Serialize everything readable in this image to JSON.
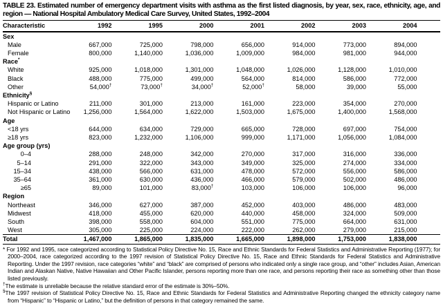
{
  "table": {
    "title": "TABLE 23. Estimated number of emergency department visits with asthma as the first listed diagnosis, by year, sex, race, ethnicity, age, and region — National Hospital Ambulatory Medical Care Survey, United States, 1992–2004",
    "columns": [
      "Characteristic",
      "1992",
      "1995",
      "2000",
      "2001",
      "2002",
      "2003",
      "2004"
    ],
    "rows": [
      {
        "style": "section",
        "label": "Sex"
      },
      {
        "style": "item",
        "label": "Male",
        "values": [
          "667,000",
          "725,000",
          "798,000",
          "656,000",
          "914,000",
          "773,000",
          "894,000"
        ]
      },
      {
        "style": "item",
        "label": "Female",
        "values": [
          "800,000",
          "1,140,000",
          "1,036,000",
          "1,009,000",
          "984,000",
          "981,000",
          "944,000"
        ]
      },
      {
        "style": "section",
        "label": "Race",
        "sup": "*"
      },
      {
        "style": "item",
        "label": "White",
        "values": [
          "925,000",
          "1,018,000",
          "1,301,000",
          "1,048,000",
          "1,026,000",
          "1,128,000",
          "1,010,000"
        ]
      },
      {
        "style": "item",
        "label": "Black",
        "values": [
          "488,000",
          "775,000",
          "499,000",
          "564,000",
          "814,000",
          "586,000",
          "772,000"
        ]
      },
      {
        "style": "item",
        "label": "Other",
        "values": [
          "54,000†",
          "73,000†",
          "34,000†",
          "52,000†",
          "58,000",
          "39,000",
          "55,000"
        ]
      },
      {
        "style": "section",
        "label": "Ethnicity",
        "sup": "§"
      },
      {
        "style": "item",
        "label": "Hispanic or Latino",
        "values": [
          "211,000",
          "301,000",
          "213,000",
          "161,000",
          "223,000",
          "354,000",
          "270,000"
        ]
      },
      {
        "style": "item",
        "label": "Not Hispanic or Latino",
        "values": [
          "1,256,000",
          "1,564,000",
          "1,622,000",
          "1,503,000",
          "1,675,000",
          "1,400,000",
          "1,568,000"
        ]
      },
      {
        "style": "section",
        "label": "Age"
      },
      {
        "style": "item",
        "label": "<18 yrs",
        "values": [
          "644,000",
          "634,000",
          "729,000",
          "665,000",
          "728,000",
          "697,000",
          "754,000"
        ]
      },
      {
        "style": "item",
        "label": "≥18 yrs",
        "values": [
          "823,000",
          "1,232,000",
          "1,106,000",
          "999,000",
          "1,171,000",
          "1,056,000",
          "1,084,000"
        ]
      },
      {
        "style": "section",
        "label": "Age group (yrs)"
      },
      {
        "style": "agenum",
        "label": "0–4",
        "values": [
          "288,000",
          "248,000",
          "342,000",
          "270,000",
          "317,000",
          "316,000",
          "336,000"
        ]
      },
      {
        "style": "agenum",
        "label": "5–14",
        "values": [
          "291,000",
          "322,000",
          "343,000",
          "349,000",
          "325,000",
          "274,000",
          "334,000"
        ]
      },
      {
        "style": "agenum",
        "label": "15–34",
        "values": [
          "438,000",
          "566,000",
          "631,000",
          "478,000",
          "572,000",
          "556,000",
          "586,000"
        ]
      },
      {
        "style": "agenum",
        "label": "35–64",
        "values": [
          "361,000",
          "630,000",
          "436,000",
          "466,000",
          "579,000",
          "502,000",
          "486,000"
        ]
      },
      {
        "style": "agenum",
        "label": "≥65",
        "values": [
          "89,000",
          "101,000",
          "83,000†",
          "103,000",
          "106,000",
          "106,000",
          "96,000"
        ]
      },
      {
        "style": "section",
        "label": "Region"
      },
      {
        "style": "item",
        "label": "Northeast",
        "values": [
          "346,000",
          "627,000",
          "387,000",
          "452,000",
          "403,000",
          "486,000",
          "483,000"
        ]
      },
      {
        "style": "item",
        "label": "Midwest",
        "values": [
          "418,000",
          "455,000",
          "620,000",
          "440,000",
          "458,000",
          "324,000",
          "509,000"
        ]
      },
      {
        "style": "item",
        "label": "South",
        "values": [
          "398,000",
          "558,000",
          "604,000",
          "551,000",
          "775,000",
          "664,000",
          "631,000"
        ]
      },
      {
        "style": "item",
        "label": "West",
        "values": [
          "305,000",
          "225,000",
          "224,000",
          "222,000",
          "262,000",
          "279,000",
          "215,000"
        ]
      },
      {
        "style": "total",
        "label": "Total",
        "values": [
          "1,467,000",
          "1,865,000",
          "1,835,000",
          "1,665,000",
          "1,898,000",
          "1,753,000",
          "1,838,000"
        ]
      }
    ],
    "footnotes": [
      {
        "marker": "*",
        "text": " For 1992 and 1995, race categorized according to Statistical Policy Directive No. 15, Race and Ethnic Standards for Federal Statistics and Administrative Reporting (1977); for 2000–2004, race categorized according to the 1997 revision of Statistical Policy Directive No. 15, Race and Ethnic Standards for Federal Statistics and Administrative Reporting. Under the 1997 revision, race categories “white” and “black” are comprised of persons who indicated only a single race group, and “other” includes Asian, American Indian and Alaskan Native, Native Hawaiian and Other Pacific Islander, persons reporting more than one race, and persons reporting their race as something other than those listed previously."
      },
      {
        "marker": "†",
        "text": "The estimate is unreliable because the relative standard error of the estimate is 30%–50%."
      },
      {
        "marker": "§",
        "text": "The 1997 revision of Statistical Policy Directive No. 15, Race and Ethnic Standards for Federal Statistics and Administrative Reporting changed the ethnicity category name from “Hispanic” to “Hispanic or Latino,” but the definition of persons in that category remained the same."
      }
    ]
  }
}
